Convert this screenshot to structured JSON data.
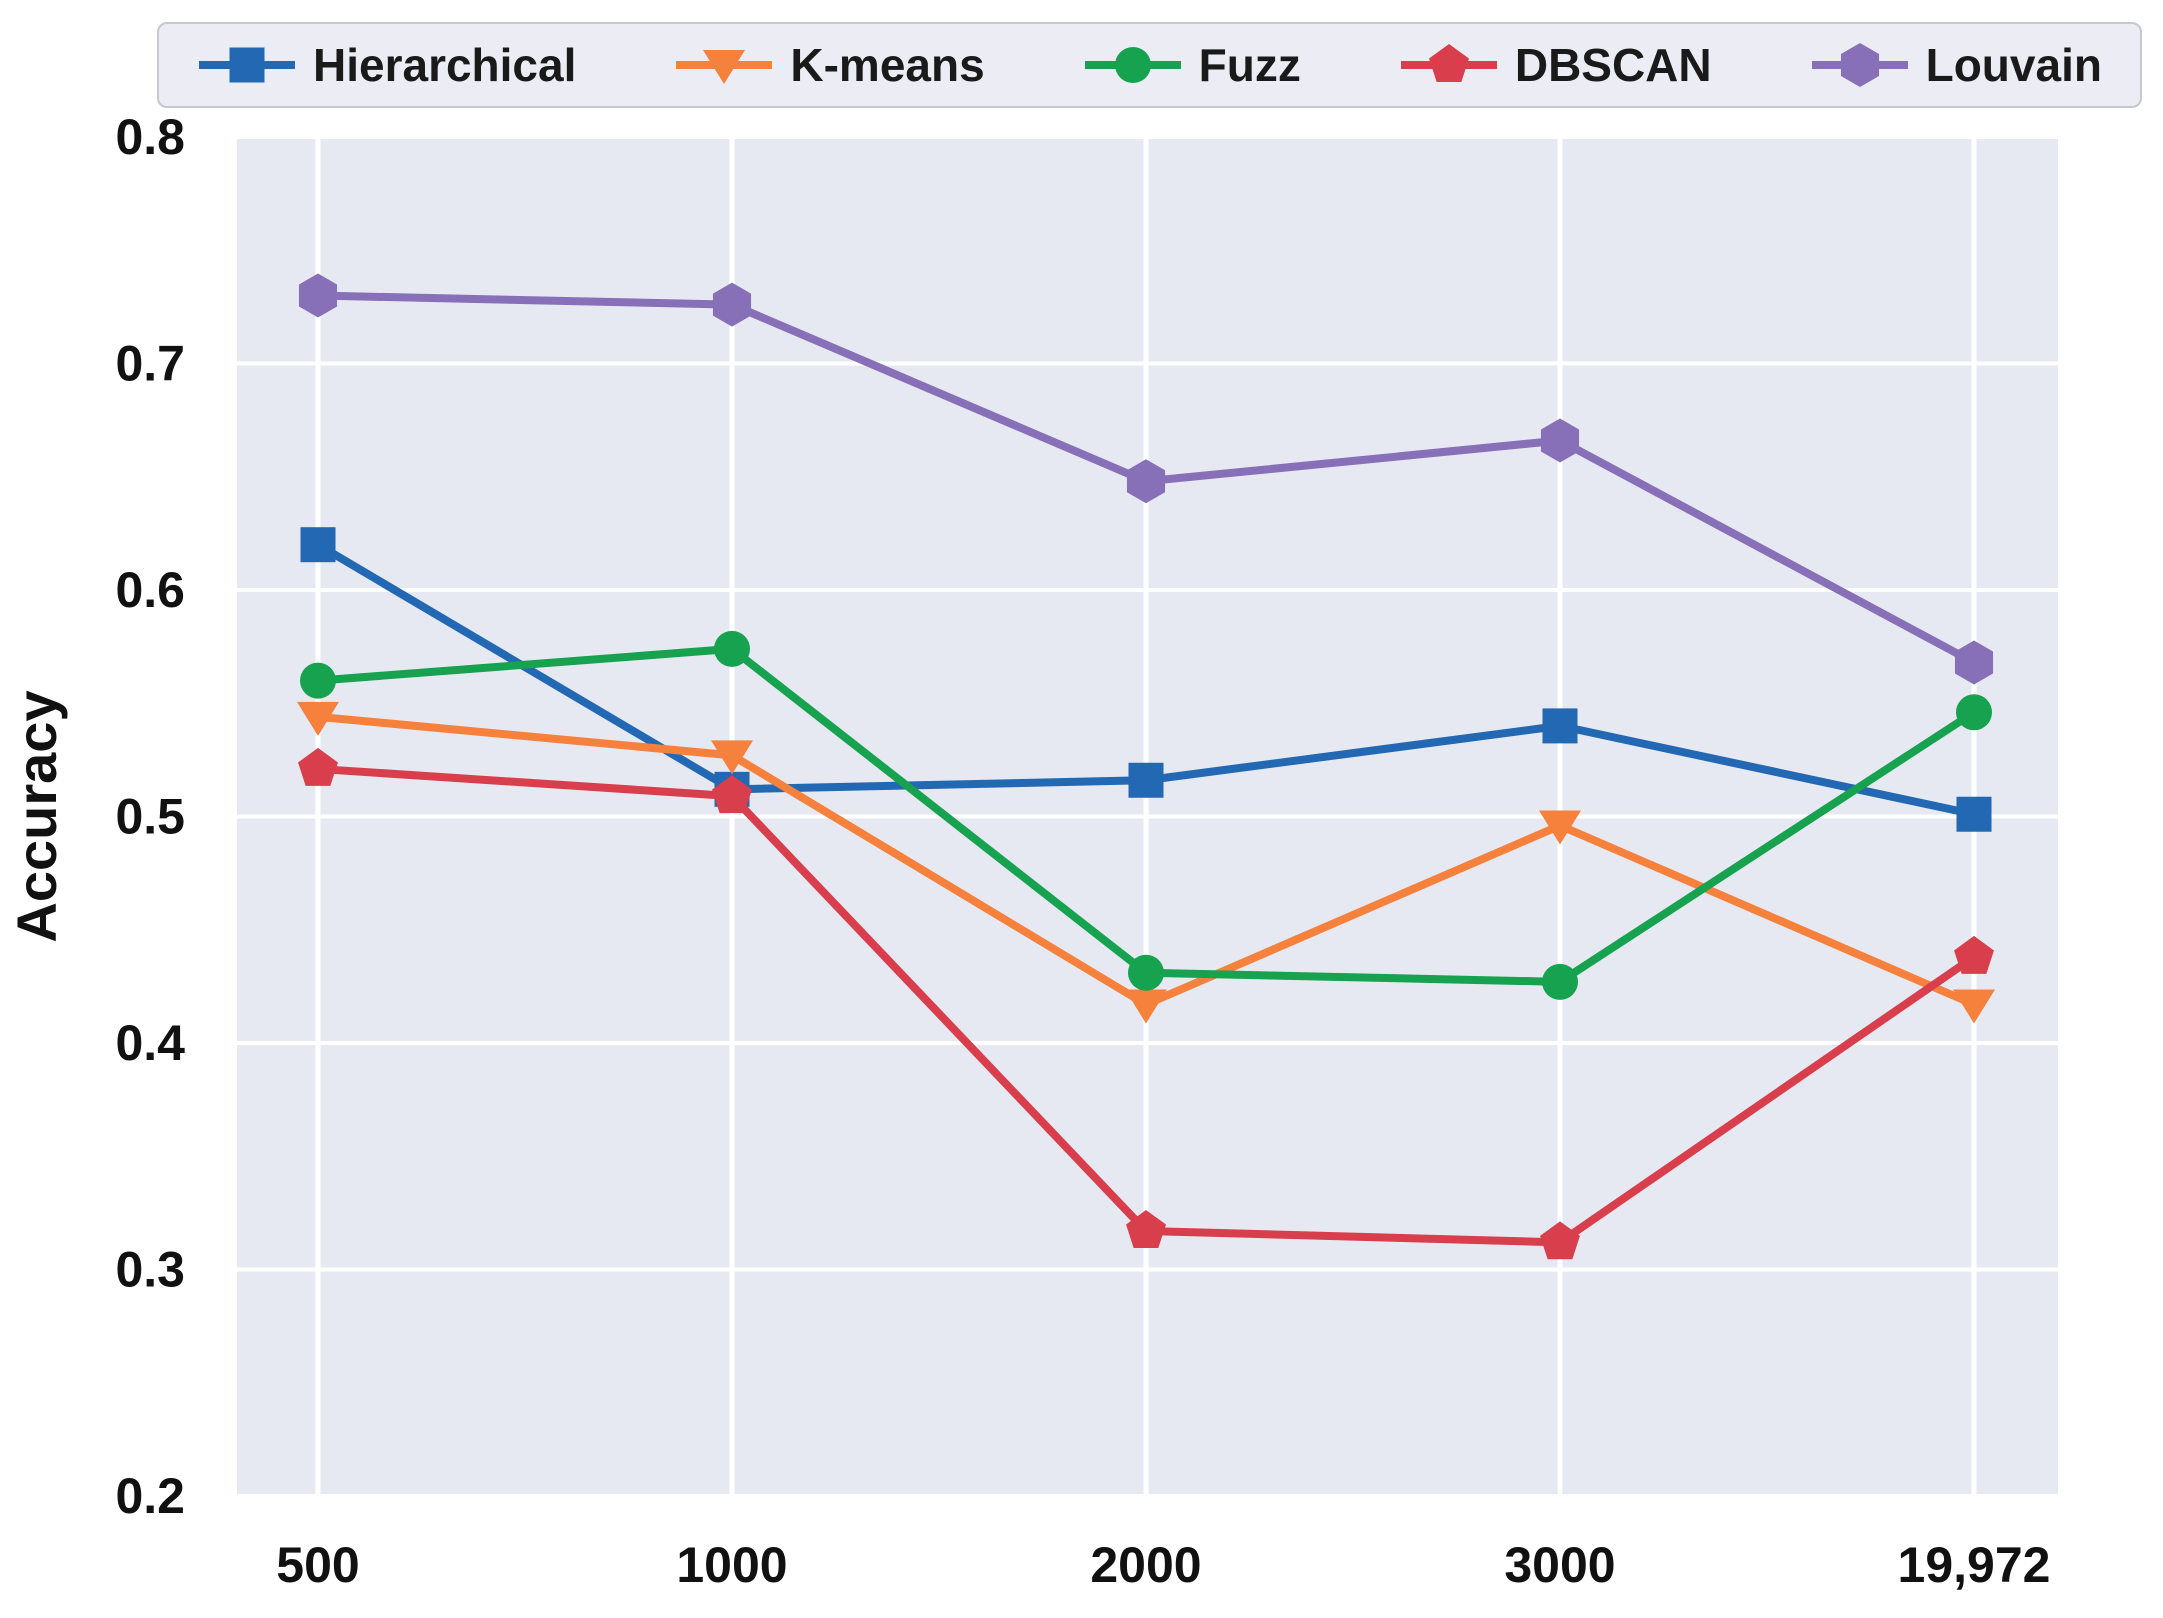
{
  "chart_data": {
    "type": "line",
    "title": "",
    "xlabel": "",
    "ylabel": "Accuracy",
    "categories": [
      "500",
      "1000",
      "2000",
      "3000",
      "19,972"
    ],
    "ytick_labels": [
      "0.8",
      "0.7",
      "0.6",
      "0.5",
      "0.4",
      "0.3",
      "0.2"
    ],
    "yticks": [
      0.8,
      0.7,
      0.6,
      0.5,
      0.4,
      0.3,
      0.2
    ],
    "ylim": [
      0.2,
      0.8
    ],
    "grid": true,
    "legend_position": "top",
    "plot_bg_color": "#E7E9F2",
    "grid_color": "#FFFFFF",
    "series": [
      {
        "name": "Hierarchical",
        "color": "#2268B2",
        "marker": "square",
        "values": [
          0.62,
          0.512,
          0.516,
          0.54,
          0.501
        ]
      },
      {
        "name": "K-means",
        "color": "#F5813D",
        "marker": "triangle-down",
        "values": [
          0.544,
          0.527,
          0.417,
          0.496,
          0.417
        ]
      },
      {
        "name": "Fuzz",
        "color": "#17A24F",
        "marker": "circle",
        "values": [
          0.56,
          0.574,
          0.431,
          0.427,
          0.546
        ]
      },
      {
        "name": "DBSCAN",
        "color": "#D93E4C",
        "marker": "pentagon",
        "values": [
          0.521,
          0.509,
          0.317,
          0.312,
          0.438
        ]
      },
      {
        "name": "Louvain",
        "color": "#8770B8",
        "marker": "hexagon",
        "values": [
          0.73,
          0.726,
          0.648,
          0.666,
          0.568
        ]
      }
    ]
  }
}
